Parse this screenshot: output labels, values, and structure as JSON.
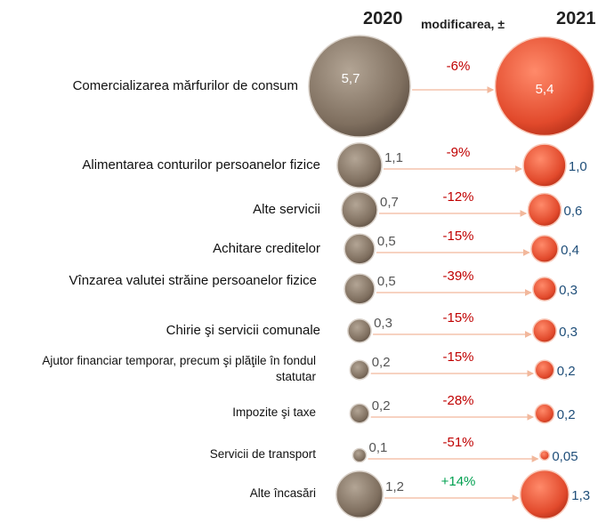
{
  "chart_data": {
    "type": "bubble",
    "change_label": "modificarea, ±",
    "categories": [
      "Comercializarea mărfurilor de consum",
      "Alimentarea conturilor persoanelor fizice",
      "Alte servicii",
      "Achitare creditelor",
      "Vînzarea valutei străine persoanelor fizice",
      "Chirie şi servicii comunale",
      "Ajutor financiar temporar, precum şi plăţile în fondul statutar",
      "Impozite şi taxe",
      "Servicii de transport",
      "Alte încasări"
    ],
    "series": [
      {
        "name": "2020",
        "color": "#8b7b6b",
        "label_color": "#555555",
        "values": [
          5.7,
          1.1,
          0.7,
          0.5,
          0.5,
          0.3,
          0.2,
          0.2,
          0.1,
          1.2
        ],
        "value_labels": [
          "5,7",
          "1,1",
          "0,7",
          "0,5",
          "0,5",
          "0,3",
          "0,2",
          "0,2",
          "0,1",
          "1,2"
        ]
      },
      {
        "name": "2021",
        "color": "#e8553a",
        "label_color": "#1f4e79",
        "values": [
          5.4,
          1.0,
          0.6,
          0.4,
          0.3,
          0.3,
          0.2,
          0.2,
          0.05,
          1.3
        ],
        "value_labels": [
          "5,4",
          "1,0",
          "0,6",
          "0,4",
          "0,3",
          "0,3",
          "0,2",
          "0,2",
          "0,05",
          "1,3"
        ]
      }
    ],
    "changes": {
      "values": [
        -6,
        -9,
        -12,
        -15,
        -39,
        -15,
        -15,
        -28,
        -51,
        14
      ],
      "value_labels": [
        "-6%",
        "-9%",
        "-12%",
        "-15%",
        "-39%",
        "-15%",
        "-15%",
        "-28%",
        "-51%",
        "+14%"
      ],
      "negative_color": "#c00000",
      "positive_color": "#00a050"
    }
  }
}
